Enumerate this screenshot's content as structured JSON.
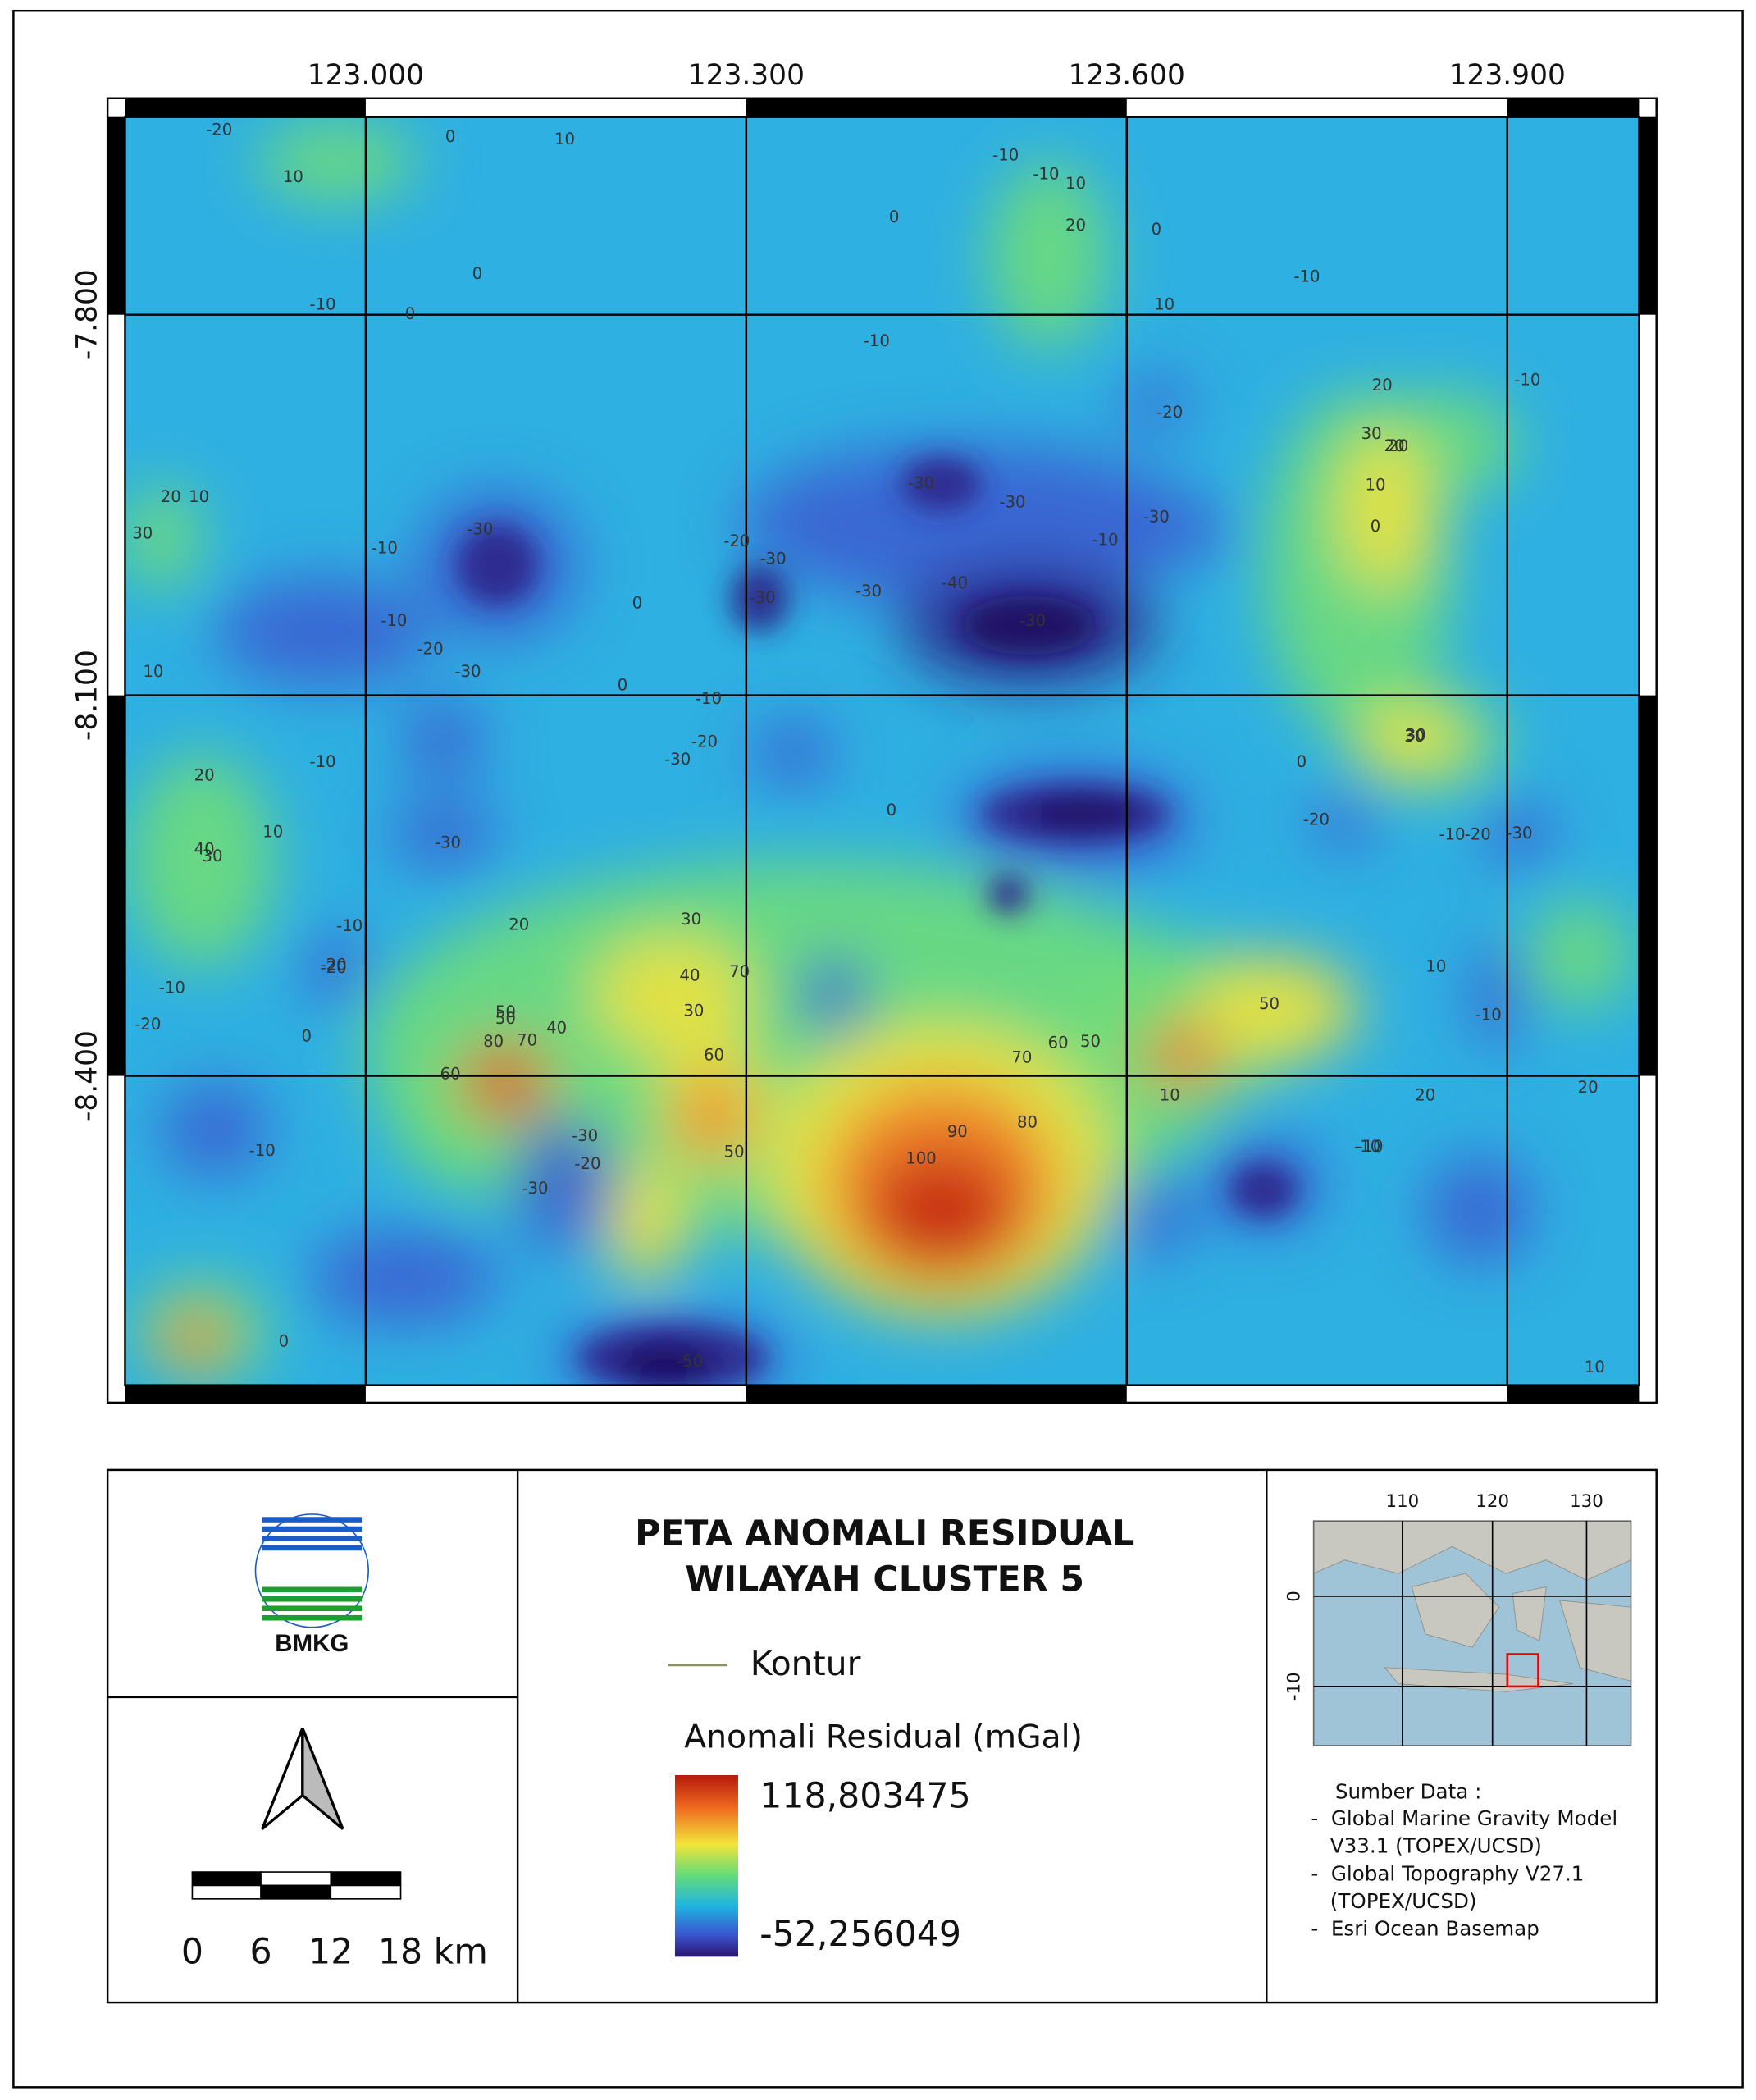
{
  "map": {
    "x_ticks": [
      {
        "value": 123.0,
        "label": "123.000"
      },
      {
        "value": 123.3,
        "label": "123.300"
      },
      {
        "value": 123.6,
        "label": "123.600"
      },
      {
        "value": 123.9,
        "label": "123.900"
      }
    ],
    "y_ticks": [
      {
        "value": -7.8,
        "label": "-7.800"
      },
      {
        "value": -8.1,
        "label": "-8.100"
      },
      {
        "value": -8.4,
        "label": "-8.400"
      }
    ],
    "contour_labels": [
      -20,
      0,
      10,
      10,
      0,
      -10,
      -10,
      10,
      0,
      20,
      0,
      -10,
      -10,
      0,
      -10,
      10,
      20,
      30,
      -10,
      -30,
      -20,
      -30,
      -30,
      -40,
      -30,
      -20,
      -30,
      20,
      20,
      10,
      0,
      -10,
      10,
      20,
      30,
      -10,
      -20,
      -30,
      30,
      -10,
      10,
      0,
      -30,
      -30,
      -30,
      0,
      -20,
      -10,
      -30,
      30,
      20,
      10,
      30,
      40,
      30,
      -10,
      -20,
      50,
      60,
      70,
      80,
      50,
      60,
      70,
      40,
      90,
      80,
      100,
      70,
      60,
      50,
      20,
      -20,
      -10,
      20,
      10,
      -10,
      30,
      -30,
      -20,
      -30,
      -20,
      50,
      20,
      40,
      50,
      0,
      -10,
      10,
      -10,
      0,
      0,
      -30,
      -50,
      -10,
      -20,
      -10,
      -30,
      -20,
      0,
      -10,
      10
    ]
  },
  "logo": {
    "text": "BMKG"
  },
  "scale_bar": {
    "labels": [
      "0",
      "6",
      "12",
      "18 km"
    ]
  },
  "legend_panel": {
    "title_lines": [
      "PETA ANOMALI RESIDUAL",
      "WILAYAH CLUSTER 5"
    ],
    "contour_label": "Kontur",
    "colorbar_title": "Anomali Residual (mGal)",
    "colorbar_max": "118,803475",
    "colorbar_min": "-52,256049"
  },
  "inset": {
    "x_ticks": [
      "110",
      "120",
      "130"
    ],
    "y_ticks": [
      "0",
      "-10"
    ]
  },
  "source": {
    "heading": "Sumber Data :",
    "items": [
      "-  Global Marine Gravity Model",
      "   V33.1 (TOPEX/UCSD)",
      "-  Global Topography V27.1",
      "   (TOPEX/UCSD)",
      "-  Esri Ocean Basemap"
    ]
  }
}
